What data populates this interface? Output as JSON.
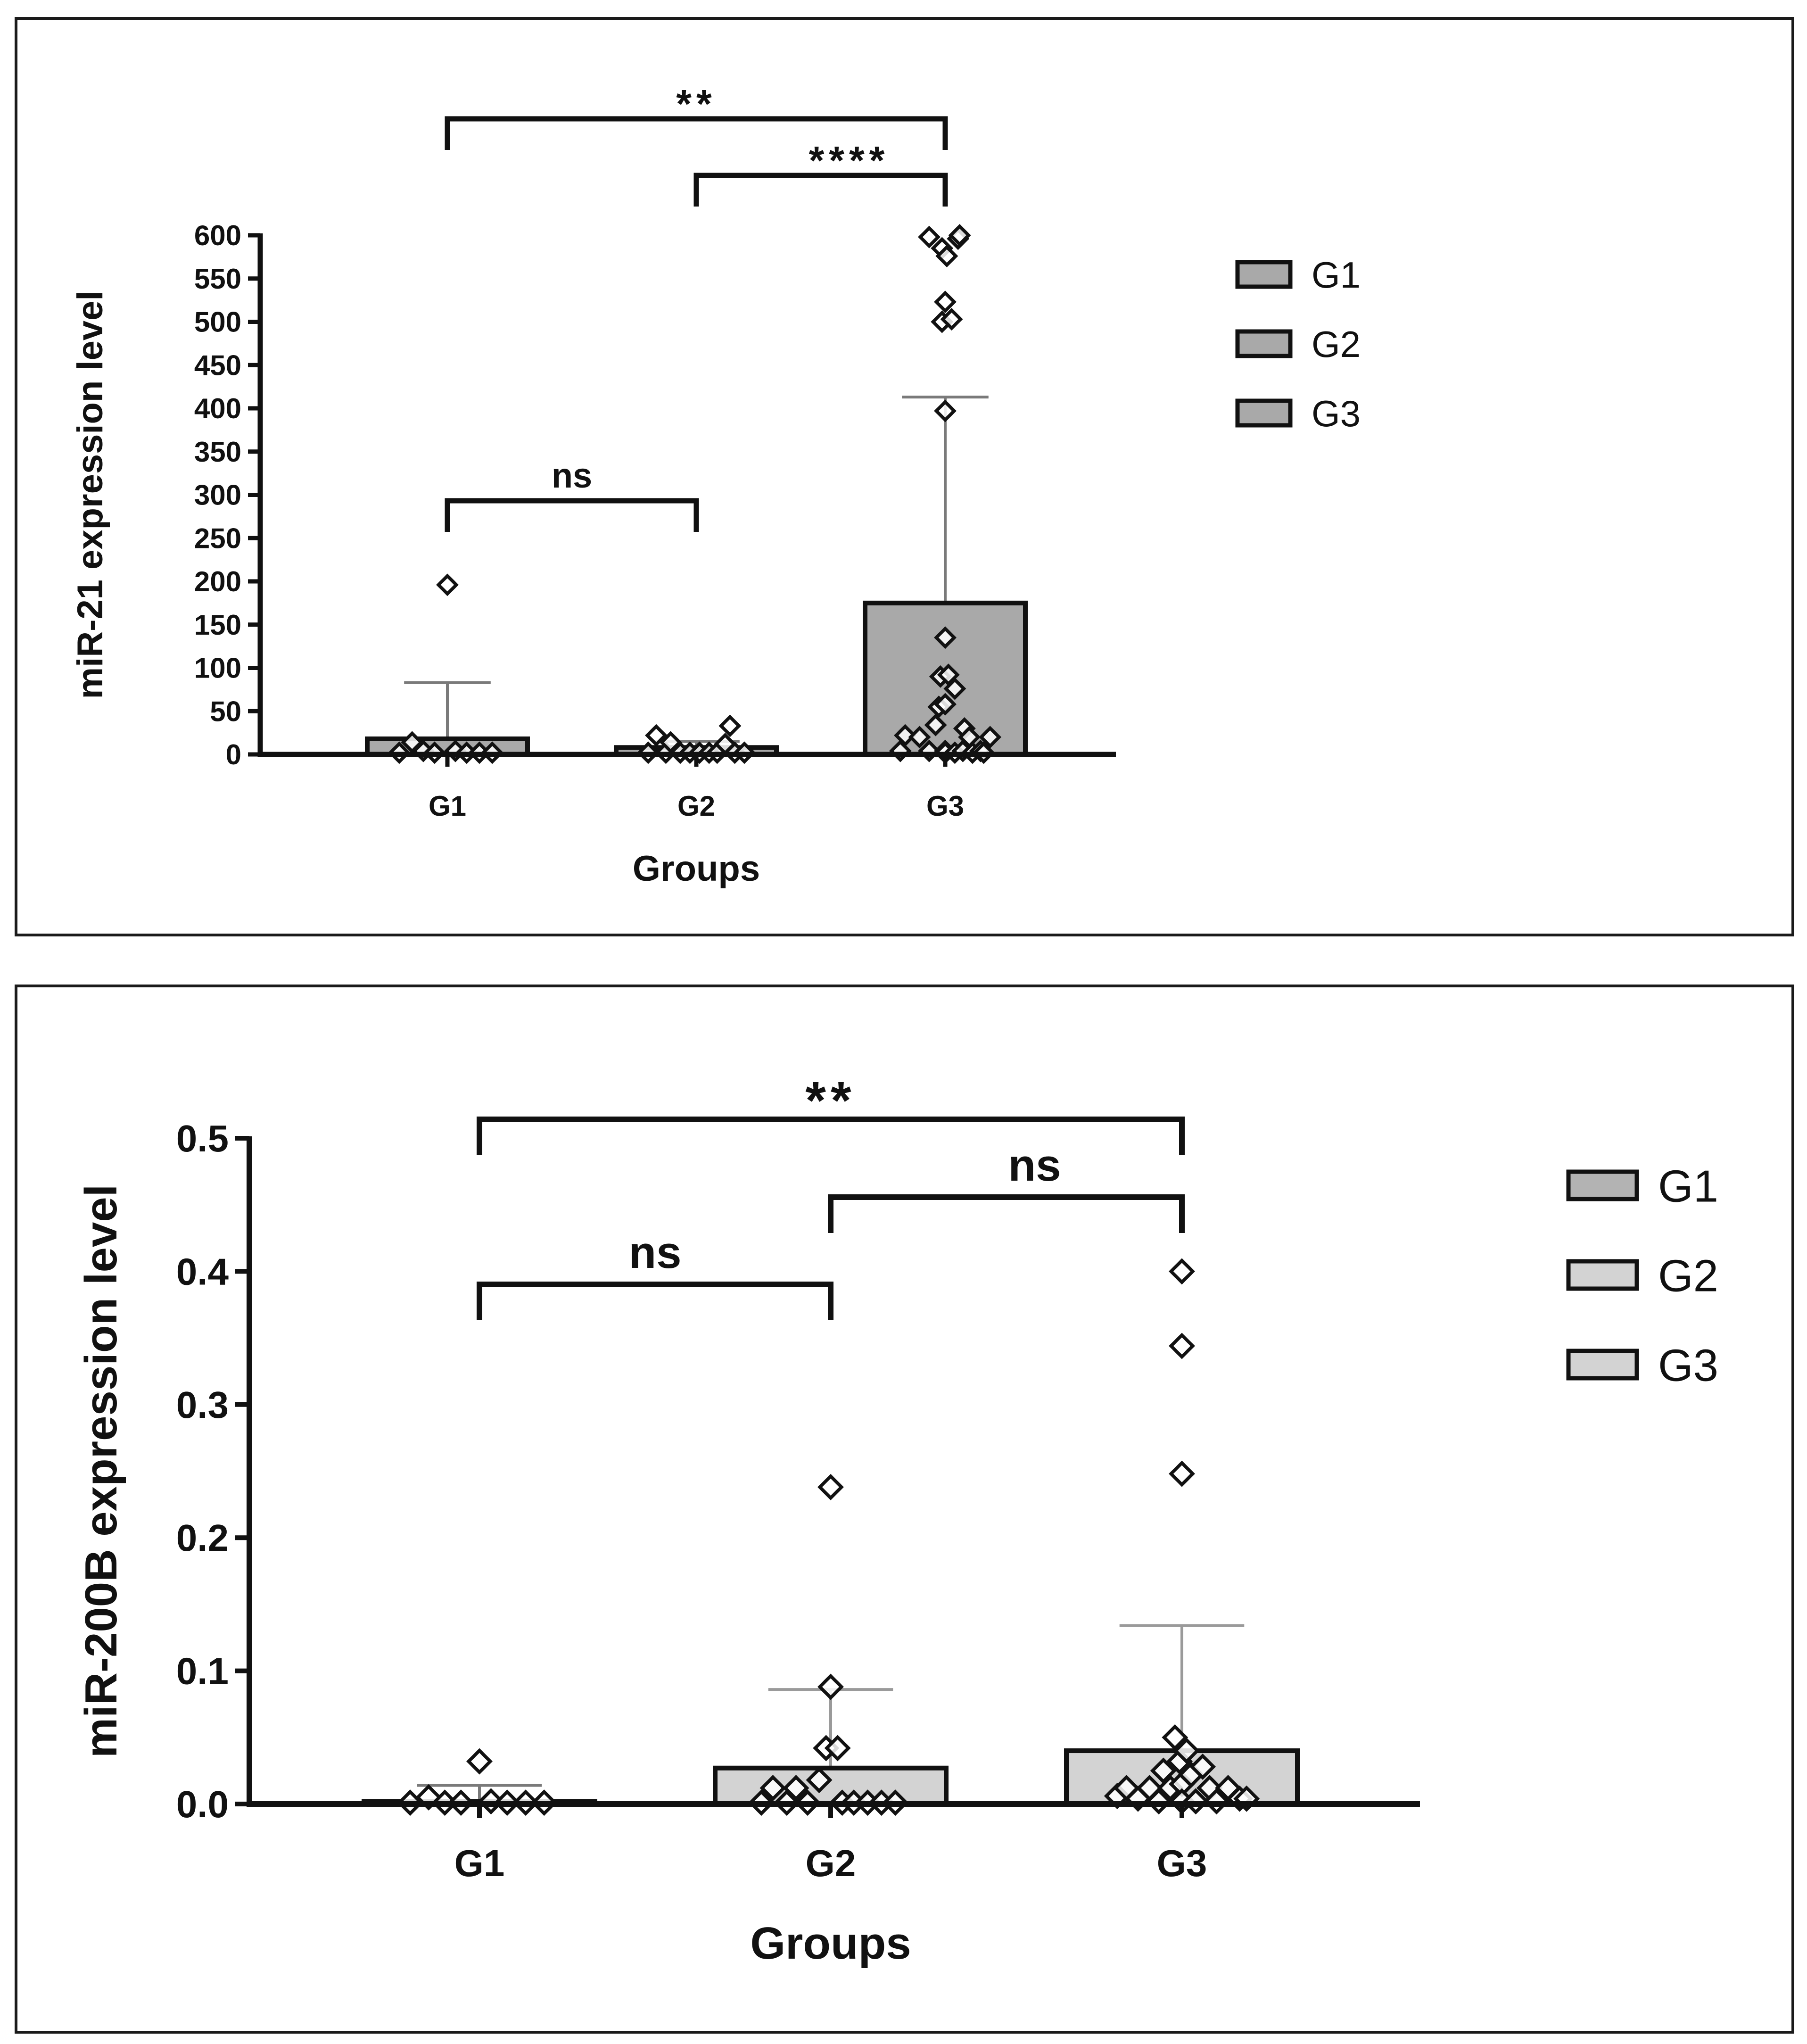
{
  "chart_data": [
    {
      "type": "bar",
      "title": "",
      "xlabel": "Groups",
      "ylabel": "miR-21 expression level",
      "ylim": [
        0,
        600
      ],
      "yticks": [
        0,
        50,
        100,
        150,
        200,
        250,
        300,
        350,
        400,
        450,
        500,
        550,
        600
      ],
      "ytick_labels": [
        "0",
        "50",
        "100",
        "150",
        "200",
        "250",
        "300",
        "350",
        "400",
        "450",
        "500",
        "550",
        "600"
      ],
      "categories": [
        "G1",
        "G2",
        "G3"
      ],
      "values": [
        18,
        8,
        175
      ],
      "error_upper": [
        83,
        15,
        413
      ],
      "bar_colors": [
        "#a9a9a9",
        "#a9a9a9",
        "#a9a9a9"
      ],
      "legend": [
        {
          "label": "G1",
          "color": "#a9a9a9"
        },
        {
          "label": "G2",
          "color": "#a9a9a9"
        },
        {
          "label": "G3",
          "color": "#a9a9a9"
        }
      ],
      "legend_position": "right",
      "points": [
        {
          "group": 0,
          "offset": -0.3,
          "y": 2
        },
        {
          "group": 0,
          "offset": -0.22,
          "y": 14
        },
        {
          "group": 0,
          "offset": -0.15,
          "y": 4
        },
        {
          "group": 0,
          "offset": -0.08,
          "y": 2
        },
        {
          "group": 0,
          "offset": 0.0,
          "y": 196
        },
        {
          "group": 0,
          "offset": 0.05,
          "y": 4
        },
        {
          "group": 0,
          "offset": 0.12,
          "y": 2
        },
        {
          "group": 0,
          "offset": 0.2,
          "y": 2
        },
        {
          "group": 0,
          "offset": 0.28,
          "y": 2
        },
        {
          "group": 1,
          "offset": -0.3,
          "y": 2
        },
        {
          "group": 1,
          "offset": -0.25,
          "y": 22
        },
        {
          "group": 1,
          "offset": -0.19,
          "y": 2
        },
        {
          "group": 1,
          "offset": -0.16,
          "y": 14
        },
        {
          "group": 1,
          "offset": -0.1,
          "y": 2
        },
        {
          "group": 1,
          "offset": -0.04,
          "y": 2
        },
        {
          "group": 1,
          "offset": 0.02,
          "y": 2
        },
        {
          "group": 1,
          "offset": 0.08,
          "y": 2
        },
        {
          "group": 1,
          "offset": 0.13,
          "y": 2
        },
        {
          "group": 1,
          "offset": 0.18,
          "y": 12
        },
        {
          "group": 1,
          "offset": 0.21,
          "y": 33
        },
        {
          "group": 1,
          "offset": 0.24,
          "y": 2
        },
        {
          "group": 1,
          "offset": 0.3,
          "y": 2
        },
        {
          "group": 2,
          "offset": -0.28,
          "y": 4
        },
        {
          "group": 2,
          "offset": -0.25,
          "y": 22
        },
        {
          "group": 2,
          "offset": -0.16,
          "y": 20
        },
        {
          "group": 2,
          "offset": -0.1,
          "y": 4
        },
        {
          "group": 2,
          "offset": -0.1,
          "y": 598
        },
        {
          "group": 2,
          "offset": -0.06,
          "y": 34
        },
        {
          "group": 2,
          "offset": -0.04,
          "y": 55
        },
        {
          "group": 2,
          "offset": -0.03,
          "y": 90
        },
        {
          "group": 2,
          "offset": -0.02,
          "y": 500
        },
        {
          "group": 2,
          "offset": -0.02,
          "y": 585
        },
        {
          "group": 2,
          "offset": 0.0,
          "y": 397
        },
        {
          "group": 2,
          "offset": 0.0,
          "y": 135
        },
        {
          "group": 2,
          "offset": 0.0,
          "y": 523
        },
        {
          "group": 2,
          "offset": 0.0,
          "y": 58
        },
        {
          "group": 2,
          "offset": 0.0,
          "y": 4
        },
        {
          "group": 2,
          "offset": 0.0,
          "y": 2
        },
        {
          "group": 2,
          "offset": 0.01,
          "y": 576
        },
        {
          "group": 2,
          "offset": 0.02,
          "y": 92
        },
        {
          "group": 2,
          "offset": 0.04,
          "y": 503
        },
        {
          "group": 2,
          "offset": 0.06,
          "y": 2
        },
        {
          "group": 2,
          "offset": 0.06,
          "y": 76
        },
        {
          "group": 2,
          "offset": 0.08,
          "y": 596
        },
        {
          "group": 2,
          "offset": 0.09,
          "y": 600
        },
        {
          "group": 2,
          "offset": 0.11,
          "y": 4
        },
        {
          "group": 2,
          "offset": 0.12,
          "y": 30
        },
        {
          "group": 2,
          "offset": 0.15,
          "y": 20
        },
        {
          "group": 2,
          "offset": 0.17,
          "y": 2
        },
        {
          "group": 2,
          "offset": 0.22,
          "y": 4
        },
        {
          "group": 2,
          "offset": 0.24,
          "y": 2
        },
        {
          "group": 2,
          "offset": 0.28,
          "y": 20
        }
      ],
      "brackets": [
        {
          "from": 0,
          "to": 2,
          "label": "**",
          "level": 672
        },
        {
          "from": 1,
          "to": 2,
          "label": "****",
          "level": 672
        },
        {
          "from": 0,
          "to": 1,
          "label": "ns",
          "level": 296
        }
      ]
    },
    {
      "type": "bar",
      "title": "",
      "xlabel": "Groups",
      "ylabel": "miR-200B expression level",
      "ylim": [
        0,
        0.5
      ],
      "yticks": [
        0,
        0.1,
        0.2,
        0.3,
        0.4,
        0.5
      ],
      "ytick_labels": [
        "0.0",
        "0.1",
        "0.2",
        "0.3",
        "0.4",
        "0.5"
      ],
      "categories": [
        "G1",
        "G2",
        "G3"
      ],
      "values": [
        0.002,
        0.027,
        0.04
      ],
      "error_upper": [
        0.014,
        0.086,
        0.134
      ],
      "bar_colors": [
        "#b3b3b3",
        "#d3d3d3",
        "#d3d3d3"
      ],
      "legend": [
        {
          "label": "G1",
          "color": "#b3b3b3"
        },
        {
          "label": "G2",
          "color": "#d3d3d3"
        },
        {
          "label": "G3",
          "color": "#d3d3d3"
        }
      ],
      "legend_position": "right",
      "points": [
        {
          "group": 0,
          "offset": -0.3,
          "y": 0.001
        },
        {
          "group": 0,
          "offset": -0.22,
          "y": 0.005
        },
        {
          "group": 0,
          "offset": -0.15,
          "y": 0.001
        },
        {
          "group": 0,
          "offset": -0.08,
          "y": 0.001
        },
        {
          "group": 0,
          "offset": 0.0,
          "y": 0.032
        },
        {
          "group": 0,
          "offset": 0.05,
          "y": 0.002
        },
        {
          "group": 0,
          "offset": 0.12,
          "y": 0.001
        },
        {
          "group": 0,
          "offset": 0.2,
          "y": 0.001
        },
        {
          "group": 0,
          "offset": 0.28,
          "y": 0.001
        },
        {
          "group": 1,
          "offset": -0.3,
          "y": 0.001
        },
        {
          "group": 1,
          "offset": -0.25,
          "y": 0.012
        },
        {
          "group": 1,
          "offset": -0.19,
          "y": 0.001
        },
        {
          "group": 1,
          "offset": -0.15,
          "y": 0.012
        },
        {
          "group": 1,
          "offset": -0.1,
          "y": 0.001
        },
        {
          "group": 1,
          "offset": -0.05,
          "y": 0.018
        },
        {
          "group": 1,
          "offset": -0.02,
          "y": 0.042
        },
        {
          "group": 1,
          "offset": 0.0,
          "y": 0.238
        },
        {
          "group": 1,
          "offset": 0.0,
          "y": 0.088
        },
        {
          "group": 1,
          "offset": 0.03,
          "y": 0.042
        },
        {
          "group": 1,
          "offset": 0.05,
          "y": 0.001
        },
        {
          "group": 1,
          "offset": 0.1,
          "y": 0.001
        },
        {
          "group": 1,
          "offset": 0.16,
          "y": 0.001
        },
        {
          "group": 1,
          "offset": 0.22,
          "y": 0.001
        },
        {
          "group": 1,
          "offset": 0.28,
          "y": 0.001
        },
        {
          "group": 2,
          "offset": -0.28,
          "y": 0.006
        },
        {
          "group": 2,
          "offset": -0.24,
          "y": 0.012
        },
        {
          "group": 2,
          "offset": -0.19,
          "y": 0.004
        },
        {
          "group": 2,
          "offset": -0.14,
          "y": 0.012
        },
        {
          "group": 2,
          "offset": -0.1,
          "y": 0.002
        },
        {
          "group": 2,
          "offset": -0.08,
          "y": 0.025
        },
        {
          "group": 2,
          "offset": -0.05,
          "y": 0.012
        },
        {
          "group": 2,
          "offset": -0.03,
          "y": 0.05
        },
        {
          "group": 2,
          "offset": -0.01,
          "y": 0.032
        },
        {
          "group": 2,
          "offset": 0.0,
          "y": 0.4
        },
        {
          "group": 2,
          "offset": 0.0,
          "y": 0.344
        },
        {
          "group": 2,
          "offset": 0.0,
          "y": 0.248
        },
        {
          "group": 2,
          "offset": 0.0,
          "y": 0.015
        },
        {
          "group": 2,
          "offset": 0.0,
          "y": 0.002
        },
        {
          "group": 2,
          "offset": 0.02,
          "y": 0.04
        },
        {
          "group": 2,
          "offset": 0.04,
          "y": 0.022
        },
        {
          "group": 2,
          "offset": 0.06,
          "y": 0.002
        },
        {
          "group": 2,
          "offset": 0.09,
          "y": 0.028
        },
        {
          "group": 2,
          "offset": 0.12,
          "y": 0.012
        },
        {
          "group": 2,
          "offset": 0.15,
          "y": 0.002
        },
        {
          "group": 2,
          "offset": 0.2,
          "y": 0.012
        },
        {
          "group": 2,
          "offset": 0.25,
          "y": 0.004
        },
        {
          "group": 2,
          "offset": 0.28,
          "y": 0.004
        }
      ],
      "brackets": [
        {
          "from": 0,
          "to": 2,
          "label": "**",
          "level": 0.52
        },
        {
          "from": 1,
          "to": 2,
          "label": "ns",
          "level": 0.46
        },
        {
          "from": 0,
          "to": 1,
          "label": "ns",
          "level": 0.39
        }
      ]
    }
  ]
}
